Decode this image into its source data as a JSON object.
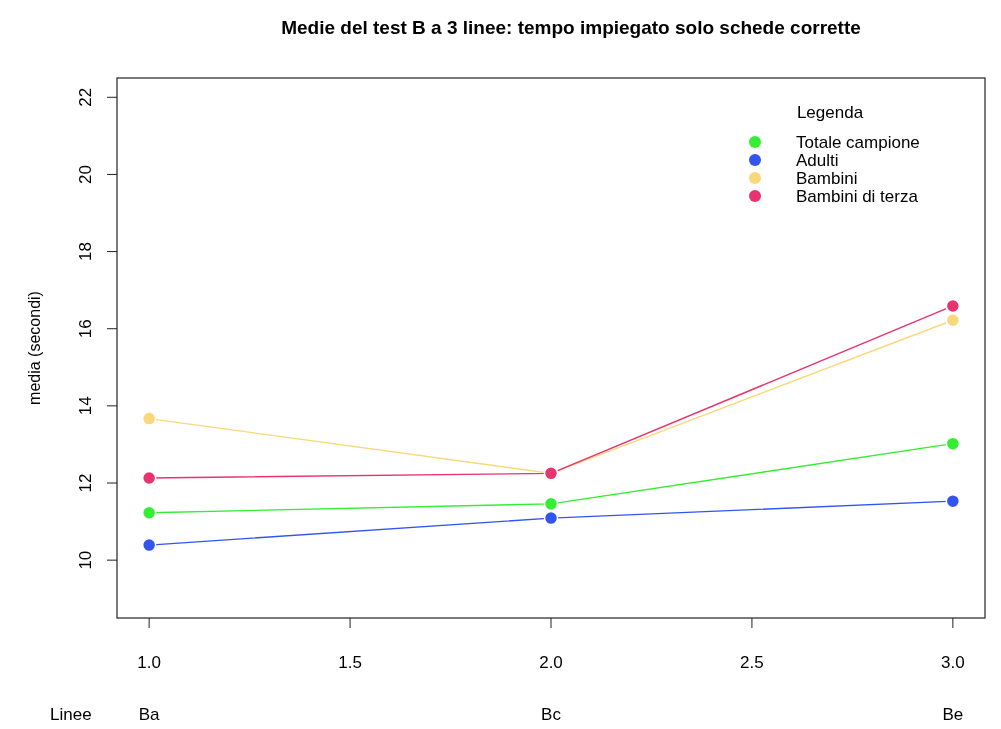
{
  "chart_data": {
    "type": "line",
    "title": "Medie del test B a 3 linee: tempo impiegato solo schede corrette",
    "ylabel": "media (secondi)",
    "legend_title": "Legenda",
    "x": [
      1,
      2,
      3
    ],
    "series": [
      {
        "name": "Totale campione",
        "color": "#33ee33",
        "values": [
          11.23,
          11.46,
          13.02
        ]
      },
      {
        "name": "Adulti",
        "color": "#3355ee",
        "values": [
          10.39,
          11.09,
          11.53
        ]
      },
      {
        "name": "Bambini",
        "color": "#f8d878",
        "values": [
          13.67,
          12.25,
          16.22
        ]
      },
      {
        "name": "Bambini di terza",
        "color": "#e8336f",
        "values": [
          12.13,
          12.25,
          16.59
        ]
      }
    ],
    "xlim": [
      0.92,
      3.08
    ],
    "xticks": [
      {
        "value": 1,
        "label": "1.0"
      },
      {
        "value": 1.5,
        "label": "1.5"
      },
      {
        "value": 2,
        "label": "2.0"
      },
      {
        "value": 2.5,
        "label": "2.5"
      },
      {
        "value": 3,
        "label": "3.0"
      }
    ],
    "ylim": [
      8.5,
      22.5
    ],
    "yticks": [
      10,
      12,
      14,
      16,
      18,
      20,
      22
    ],
    "annotations": [
      "Linee",
      "Ba",
      "Bc",
      "Be"
    ],
    "legend": "top right",
    "marker": "circle",
    "grid": false
  }
}
